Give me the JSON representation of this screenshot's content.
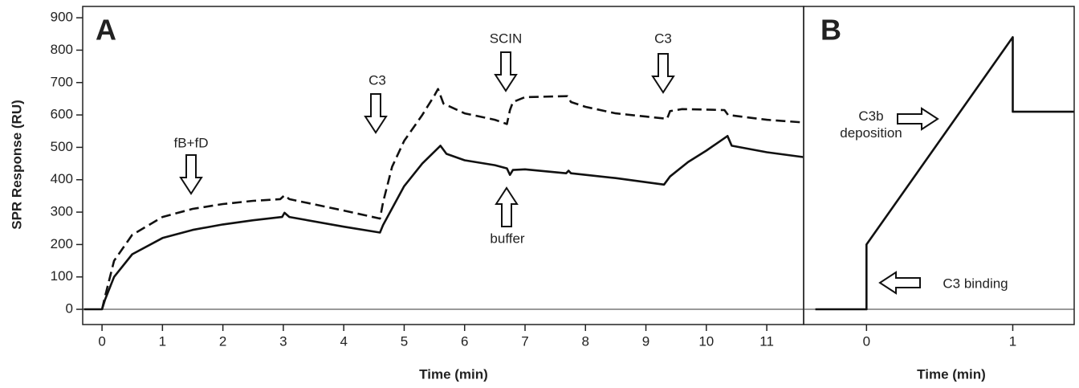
{
  "chart_data": [
    {
      "type": "line",
      "panel_label": "A",
      "ylabel": "SPR Response (RU)",
      "xlabel": "Time (min)",
      "xlim": [
        -0.32,
        11.61
      ],
      "xticks": [
        0,
        1,
        2,
        3,
        4,
        5,
        6,
        7,
        8,
        9,
        10,
        11
      ],
      "ylim": [
        -47,
        935
      ],
      "yticks": [
        0,
        100,
        200,
        300,
        400,
        500,
        600,
        700,
        800,
        900
      ],
      "series": [
        {
          "color": "#111111",
          "dashed": false,
          "x": [
            -0.3,
            0,
            0.05,
            0.2,
            0.5,
            1,
            1.5,
            2,
            2.5,
            2.98,
            3.02,
            3.1,
            4,
            4.6,
            4.65,
            5,
            5.3,
            5.6,
            5.7,
            6,
            6.5,
            6.7,
            6.75,
            6.8,
            7,
            7.68,
            7.72,
            7.76,
            8.5,
            9.3,
            9.4,
            9.7,
            10,
            10.35,
            10.42,
            11,
            11.6
          ],
          "values": [
            0,
            0,
            30,
            100,
            170,
            220,
            245,
            262,
            275,
            285,
            298,
            285,
            255,
            237,
            260,
            380,
            450,
            505,
            480,
            460,
            445,
            435,
            415,
            430,
            432,
            420,
            428,
            420,
            405,
            385,
            410,
            455,
            490,
            535,
            505,
            485,
            470
          ]
        },
        {
          "color": "#111111",
          "dashed": true,
          "x": [
            0,
            0.05,
            0.2,
            0.5,
            1,
            1.5,
            2,
            2.5,
            2.95,
            3.02,
            3.1,
            4,
            4.6,
            4.65,
            4.8,
            5,
            5.3,
            5.5,
            5.56,
            5.65,
            6,
            6.5,
            6.7,
            6.75,
            6.8,
            7,
            7.7,
            7.76,
            8,
            8.5,
            9,
            9.35,
            9.4,
            9.6,
            10.3,
            10.36,
            11,
            11.6
          ],
          "values": [
            0,
            40,
            150,
            230,
            285,
            310,
            325,
            335,
            340,
            352,
            340,
            305,
            280,
            330,
            440,
            520,
            600,
            660,
            680,
            635,
            605,
            585,
            572,
            615,
            640,
            655,
            658,
            640,
            625,
            605,
            595,
            588,
            612,
            618,
            615,
            600,
            585,
            577
          ]
        }
      ],
      "annotations": [
        "fB+fD",
        "C3",
        "SCIN",
        "C3",
        "buffer"
      ]
    },
    {
      "type": "line",
      "panel_label": "B",
      "xlabel": "Time (min)",
      "xlim": [
        -0.43,
        1.42
      ],
      "xticks": [
        0,
        1
      ],
      "ylim": [
        -47,
        935
      ],
      "series": [
        {
          "color": "#111111",
          "dashed": false,
          "x": [
            -0.35,
            0,
            0,
            1,
            1,
            1.42
          ],
          "values": [
            0,
            0,
            200,
            840,
            610,
            610
          ]
        }
      ],
      "annotations": [
        "C3b\ndeposition",
        "C3 binding"
      ]
    }
  ]
}
